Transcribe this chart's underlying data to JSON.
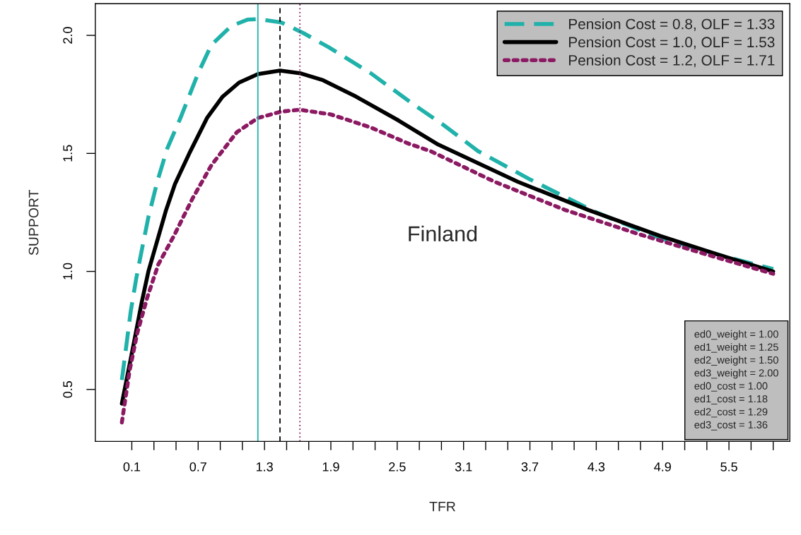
{
  "chart_data": {
    "type": "line",
    "xlabel": "TFR",
    "ylabel": "SUPPORT",
    "xlim": [
      -0.23,
      6.05
    ],
    "ylim": [
      0.28,
      2.134
    ],
    "xticks": [
      0.1,
      {
        "value": 0.3,
        "label": null
      },
      {
        "value": 0.5,
        "label": null
      },
      0.7,
      {
        "value": 0.9,
        "label": null
      },
      {
        "value": 1.1,
        "label": null
      },
      1.3,
      {
        "value": 1.5,
        "label": null
      },
      {
        "value": 1.7,
        "label": null
      },
      1.9,
      {
        "value": 2.1,
        "label": null
      },
      {
        "value": 2.3,
        "label": null
      },
      2.5,
      {
        "value": 2.7,
        "label": null
      },
      {
        "value": 2.9,
        "label": null
      },
      3.1,
      {
        "value": 3.3,
        "label": null
      },
      {
        "value": 3.5,
        "label": null
      },
      3.7,
      {
        "value": 3.9,
        "label": null
      },
      {
        "value": 4.1,
        "label": null
      },
      4.3,
      {
        "value": 4.5,
        "label": null
      },
      {
        "value": 4.7,
        "label": null
      },
      4.9,
      {
        "value": 5.1,
        "label": null
      },
      {
        "value": 5.3,
        "label": null
      },
      5.5,
      {
        "value": 5.7,
        "label": null
      },
      {
        "value": 5.9,
        "label": null
      }
    ],
    "yticks": [
      0.5,
      {
        "value": 1,
        "label": "1.0"
      },
      1.5,
      {
        "value": 2,
        "label": "2.0"
      }
    ],
    "series": [
      {
        "name": "Pension Cost = 0.8, OLF = 1.33",
        "color": "#20b2aa",
        "line_style": "dashed",
        "x": [
          0.01,
          0.09,
          0.14,
          0.19,
          0.25,
          0.33,
          0.42,
          0.54,
          0.7,
          0.82,
          1.0,
          1.15,
          1.24,
          1.45,
          1.65,
          1.88,
          2.26,
          2.64,
          2.92,
          3.23,
          3.7,
          4.3,
          4.88,
          5.41,
          5.9
        ],
        "values": [
          0.54,
          0.83,
          0.97,
          1.09,
          1.23,
          1.38,
          1.52,
          1.65,
          1.84,
          1.96,
          2.04,
          2.067,
          2.069,
          2.055,
          2.01,
          1.95,
          1.84,
          1.71,
          1.62,
          1.51,
          1.39,
          1.25,
          1.14,
          1.07,
          1.01
        ]
      },
      {
        "name": "Pension Cost = 1.0, OLF = 1.53",
        "color": "#000000",
        "line_style": "solid",
        "x": [
          0.01,
          0.12,
          0.19,
          0.25,
          0.33,
          0.41,
          0.49,
          0.62,
          0.78,
          0.92,
          1.07,
          1.24,
          1.44,
          1.62,
          1.83,
          2.13,
          2.51,
          2.86,
          3.59,
          4.23,
          4.88,
          5.41,
          5.9
        ],
        "values": [
          0.44,
          0.7,
          0.87,
          1.0,
          1.13,
          1.26,
          1.37,
          1.5,
          1.65,
          1.74,
          1.8,
          1.836,
          1.851,
          1.84,
          1.81,
          1.74,
          1.64,
          1.54,
          1.38,
          1.26,
          1.15,
          1.07,
          1.0
        ]
      },
      {
        "name": "Pension Cost = 1.2, OLF = 1.71",
        "color": "#8b1a62",
        "line_style": "dotted",
        "x": [
          0.01,
          0.08,
          0.15,
          0.24,
          0.34,
          0.48,
          0.65,
          0.82,
          1.05,
          1.24,
          1.45,
          1.62,
          1.9,
          2.26,
          2.61,
          2.8,
          3.38,
          4.02,
          4.67,
          5.31,
          5.9
        ],
        "values": [
          0.36,
          0.58,
          0.74,
          0.89,
          1.03,
          1.15,
          1.31,
          1.45,
          1.59,
          1.65,
          1.677,
          1.685,
          1.665,
          1.61,
          1.54,
          1.51,
          1.38,
          1.26,
          1.16,
          1.07,
          0.99
        ]
      }
    ],
    "ref_lines": [
      {
        "axis": "x",
        "value": 1.24,
        "color": "#20b2aa",
        "line_style": "solid"
      },
      {
        "axis": "x",
        "value": 1.44,
        "color": "#000000",
        "line_style": "dashed"
      },
      {
        "axis": "x",
        "value": 1.62,
        "color": "#8b1a62",
        "line_style": "dotted"
      }
    ],
    "annotations": [
      "Finland",
      "ed0_weight = 1.00\ned1_weight = 1.25\ned2_weight = 1.50\ned3_weight = 2.00\ned0_cost = 1.00\ned1_cost = 1.18\ned2_cost = 1.29\ned3_cost = 1.36"
    ],
    "legend": "top right",
    "grid": false
  }
}
